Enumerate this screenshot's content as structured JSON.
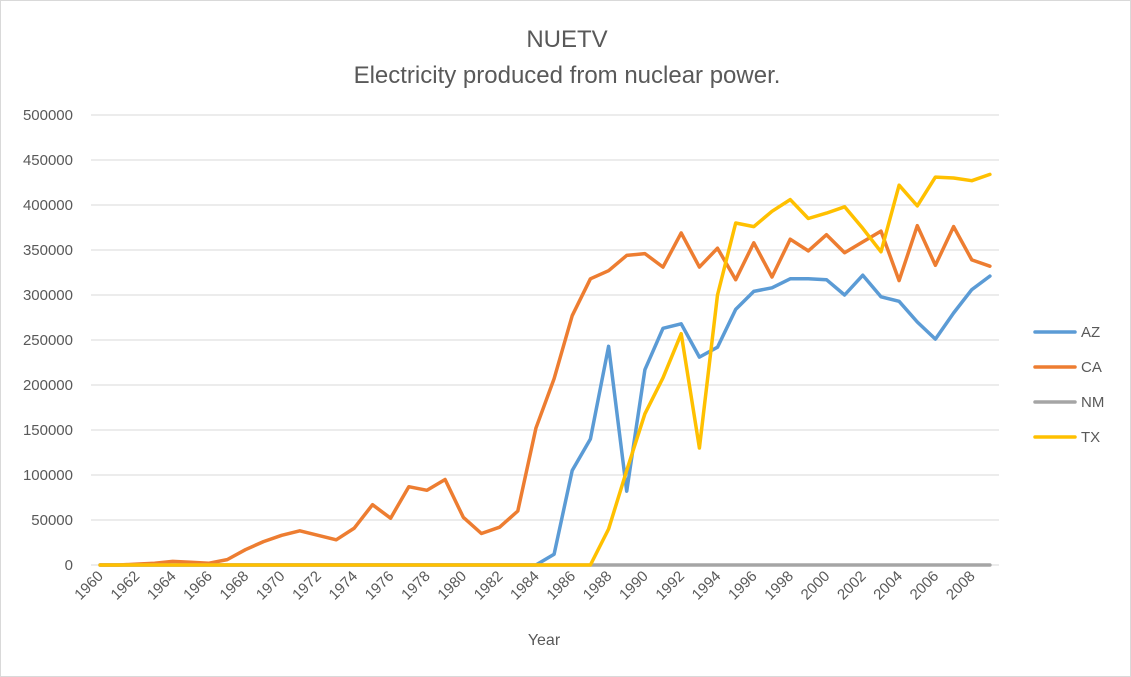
{
  "chart_data": {
    "type": "line",
    "title": "NUETV",
    "subtitle": "Electricity produced from nuclear power.",
    "xlabel": "Year",
    "ylabel": "",
    "ylim": [
      0,
      500000
    ],
    "yticks": [
      0,
      50000,
      100000,
      150000,
      200000,
      250000,
      300000,
      350000,
      400000,
      450000,
      500000
    ],
    "ytick_labels": [
      "0",
      "50000",
      "100000",
      "150000",
      "200000",
      "250000",
      "300000",
      "350000",
      "400000",
      "450000",
      "500000"
    ],
    "xtick_labels": [
      "1960",
      "1962",
      "1964",
      "1966",
      "1968",
      "1970",
      "1972",
      "1974",
      "1976",
      "1978",
      "1980",
      "1982",
      "1984",
      "1986",
      "1988",
      "1990",
      "1992",
      "1994",
      "1996",
      "1998",
      "2000",
      "2002",
      "2004",
      "2006",
      "2008"
    ],
    "x": [
      1960,
      1961,
      1962,
      1963,
      1964,
      1965,
      1966,
      1967,
      1968,
      1969,
      1970,
      1971,
      1972,
      1973,
      1974,
      1975,
      1976,
      1977,
      1978,
      1979,
      1980,
      1981,
      1982,
      1983,
      1984,
      1985,
      1986,
      1987,
      1988,
      1989,
      1990,
      1991,
      1992,
      1993,
      1994,
      1995,
      1996,
      1997,
      1998,
      1999,
      2000,
      2001,
      2002,
      2003,
      2004,
      2005,
      2006,
      2007,
      2008,
      2009
    ],
    "grid": true,
    "legend_position": "right",
    "series": [
      {
        "name": "AZ",
        "color": "#5b9bd5",
        "values": [
          0,
          0,
          0,
          0,
          0,
          0,
          0,
          0,
          0,
          0,
          0,
          0,
          0,
          0,
          0,
          0,
          0,
          0,
          0,
          0,
          0,
          0,
          0,
          0,
          0,
          12000,
          105000,
          140000,
          243000,
          82000,
          217000,
          263000,
          268000,
          231000,
          242000,
          284000,
          304000,
          308000,
          318000,
          318000,
          317000,
          300000,
          322000,
          298000,
          293000,
          270000,
          251000,
          280000,
          306000,
          321000
        ]
      },
      {
        "name": "CA",
        "color": "#ed7d31",
        "values": [
          0,
          0,
          1000,
          2000,
          4000,
          3000,
          2000,
          6000,
          17000,
          26000,
          33000,
          38000,
          33000,
          28000,
          41000,
          67000,
          52000,
          87000,
          83000,
          95000,
          53000,
          35000,
          42000,
          60000,
          152000,
          207000,
          277000,
          318000,
          327000,
          344000,
          346000,
          331000,
          369000,
          331000,
          352000,
          317000,
          358000,
          320000,
          362000,
          349000,
          367000,
          347000,
          359000,
          371000,
          316000,
          377000,
          333000,
          376000,
          339000,
          332000
        ]
      },
      {
        "name": "NM",
        "color": "#a5a5a5",
        "values": [
          0,
          0,
          0,
          0,
          0,
          0,
          0,
          0,
          0,
          0,
          0,
          0,
          0,
          0,
          0,
          0,
          0,
          0,
          0,
          0,
          0,
          0,
          0,
          0,
          0,
          0,
          0,
          0,
          0,
          0,
          0,
          0,
          0,
          0,
          0,
          0,
          0,
          0,
          0,
          0,
          0,
          0,
          0,
          0,
          0,
          0,
          0,
          0,
          0,
          0
        ]
      },
      {
        "name": "TX",
        "color": "#ffc000",
        "values": [
          0,
          0,
          0,
          0,
          0,
          0,
          0,
          0,
          0,
          0,
          0,
          0,
          0,
          0,
          0,
          0,
          0,
          0,
          0,
          0,
          0,
          0,
          0,
          0,
          0,
          0,
          0,
          0,
          40000,
          105000,
          168000,
          208000,
          257000,
          130000,
          300000,
          380000,
          376000,
          393000,
          406000,
          385000,
          391000,
          398000,
          374000,
          348000,
          422000,
          399000,
          431000,
          430000,
          427000,
          434000
        ]
      }
    ]
  },
  "colors": {
    "grid": "#d9d9d9",
    "text": "#595959"
  }
}
